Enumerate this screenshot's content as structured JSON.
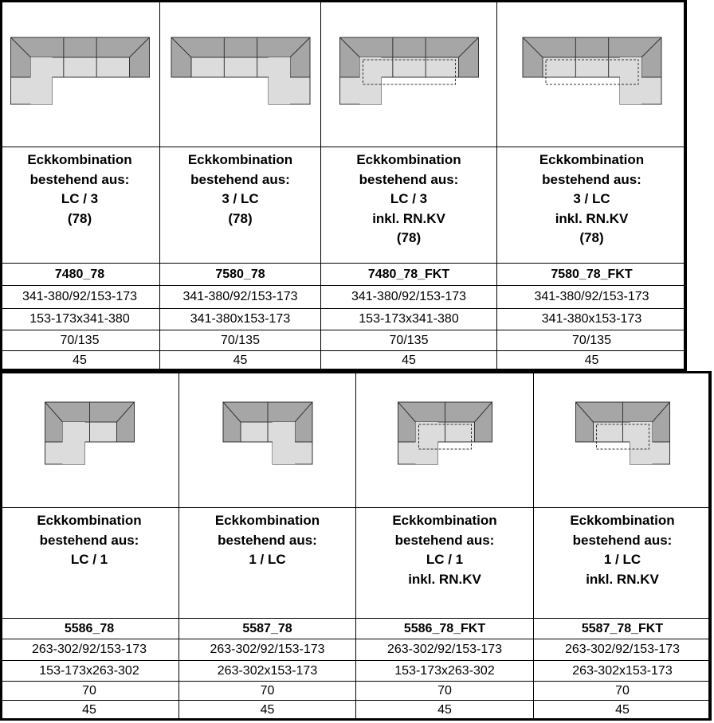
{
  "tables": [
    {
      "columns": [
        {
          "description": [
            "Eckkombination",
            "bestehend aus:",
            "LC / 3",
            "(78)"
          ],
          "code": "7480_78",
          "dimensions": "341-380/92/153-173",
          "footprint": "153-173x341-380",
          "seat_depth": "70/135",
          "seat_height": "45"
        },
        {
          "description": [
            "Eckkombination",
            "bestehend aus:",
            "3 / LC",
            "(78)"
          ],
          "code": "7580_78",
          "dimensions": "341-380/92/153-173",
          "footprint": "341-380x153-173",
          "seat_depth": "70/135",
          "seat_height": "45"
        },
        {
          "description": [
            "Eckkombination",
            "bestehend aus:",
            "LC / 3",
            "inkl. RN.KV",
            "(78)"
          ],
          "code": "7480_78_FKT",
          "dimensions": "341-380/92/153-173",
          "footprint": "153-173x341-380",
          "seat_depth": "70/135",
          "seat_height": "45"
        },
        {
          "description": [
            "Eckkombination",
            "bestehend aus:",
            "3 / LC",
            "inkl. RN.KV",
            "(78)"
          ],
          "code": "7580_78_FKT",
          "dimensions": "341-380/92/153-173",
          "footprint": "341-380x153-173",
          "seat_depth": "70/135",
          "seat_height": "45"
        }
      ]
    },
    {
      "columns": [
        {
          "description": [
            "Eckkombination",
            "bestehend aus:",
            "LC / 1"
          ],
          "code": "5586_78",
          "dimensions": "263-302/92/153-173",
          "footprint": "153-173x263-302",
          "seat_depth": "70",
          "seat_height": "45"
        },
        {
          "description": [
            "Eckkombination",
            "bestehend aus:",
            "1 / LC"
          ],
          "code": "5587_78",
          "dimensions": "263-302/92/153-173",
          "footprint": "263-302x153-173",
          "seat_depth": "70",
          "seat_height": "45"
        },
        {
          "description": [
            "Eckkombination",
            "bestehend aus:",
            "LC / 1",
            "inkl. RN.KV"
          ],
          "code": "5586_78_FKT",
          "dimensions": "263-302/92/153-173",
          "footprint": "153-173x263-302",
          "seat_depth": "70",
          "seat_height": "45"
        },
        {
          "description": [
            "Eckkombination",
            "bestehend aus:",
            "1 / LC",
            "inkl. RN.KV"
          ],
          "code": "5587_78_FKT",
          "dimensions": "263-302/92/153-173",
          "footprint": "263-302x153-173",
          "seat_depth": "70",
          "seat_height": "45"
        }
      ]
    }
  ]
}
